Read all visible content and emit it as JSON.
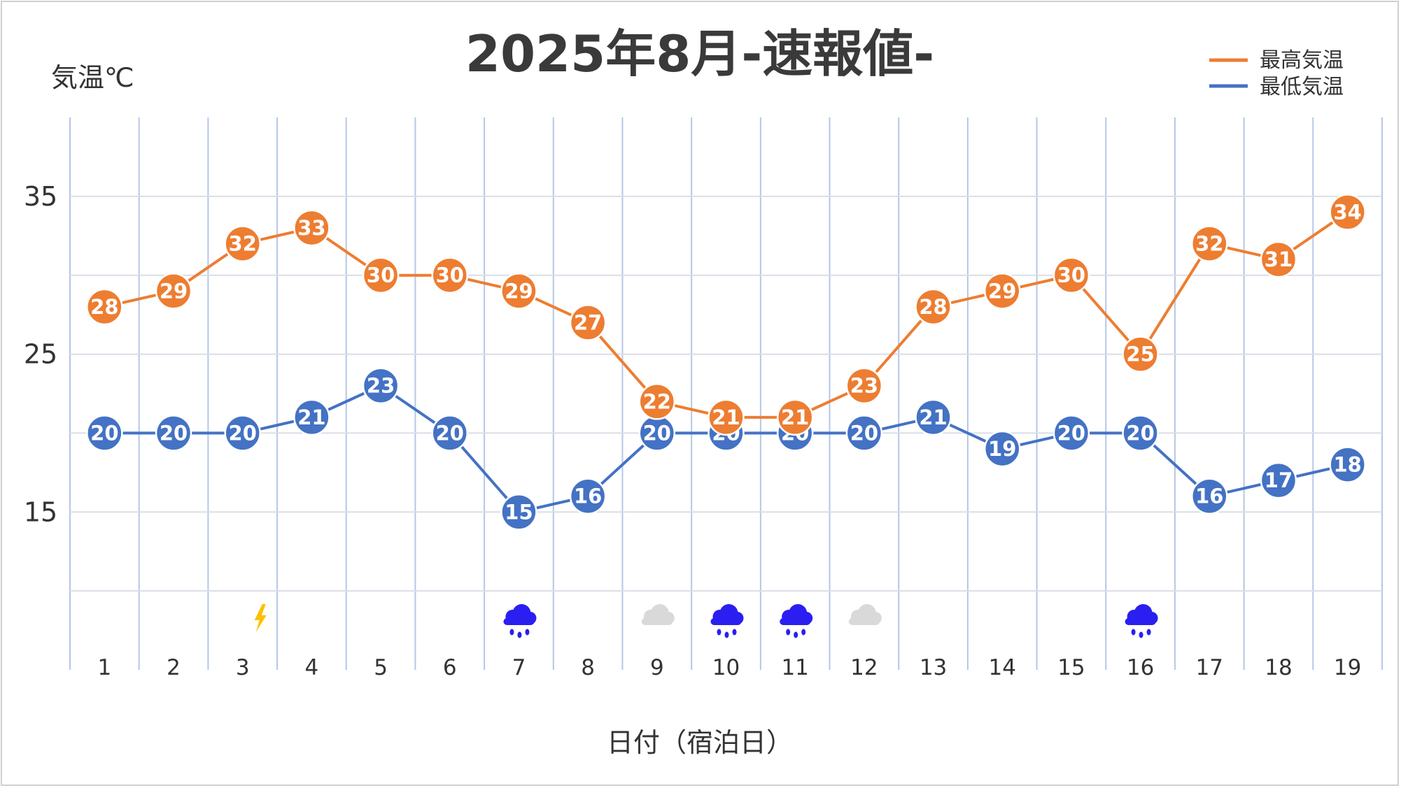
{
  "chart_data": {
    "type": "line",
    "title": "2025年8月-速報値-",
    "ylabel": "気温℃",
    "xlabel": "日付（宿泊日）",
    "categories": [
      "1",
      "2",
      "3",
      "4",
      "5",
      "6",
      "7",
      "8",
      "9",
      "10",
      "11",
      "12",
      "13",
      "14",
      "15",
      "16",
      "17",
      "18",
      "19"
    ],
    "ylim": [
      5,
      40
    ],
    "yticks": [
      15,
      25,
      35
    ],
    "grid": true,
    "legend_position": "top-right",
    "series": [
      {
        "name": "最高気温",
        "color": "#ED7D31",
        "values": [
          28,
          29,
          32,
          33,
          30,
          30,
          29,
          27,
          22,
          21,
          21,
          23,
          28,
          29,
          30,
          25,
          32,
          31,
          34
        ]
      },
      {
        "name": "最低気温",
        "color": "#4472C4",
        "values": [
          20,
          20,
          20,
          21,
          23,
          20,
          15,
          16,
          20,
          20,
          20,
          20,
          21,
          19,
          20,
          20,
          16,
          17,
          18
        ]
      }
    ],
    "weather_icons": [
      {
        "day": "3",
        "icon": "lightning-icon",
        "color": "#FFC000"
      },
      {
        "day": "7",
        "icon": "rain-icon",
        "color": "#2A1FF0"
      },
      {
        "day": "9",
        "icon": "cloud-icon",
        "color": "#D9D9D9"
      },
      {
        "day": "10",
        "icon": "rain-icon",
        "color": "#2A1FF0"
      },
      {
        "day": "11",
        "icon": "rain-icon",
        "color": "#2A1FF0"
      },
      {
        "day": "12",
        "icon": "cloud-icon",
        "color": "#D9D9D9"
      },
      {
        "day": "16",
        "icon": "rain-icon",
        "color": "#2A1FF0"
      }
    ]
  }
}
